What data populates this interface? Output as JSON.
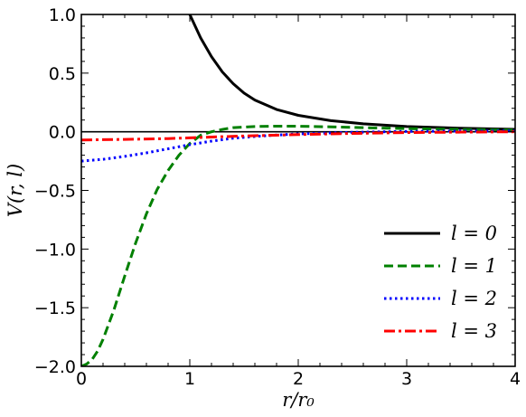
{
  "chart_data": {
    "type": "line",
    "xlabel": "r/r₀",
    "ylabel": "V(r, l)",
    "xlim": [
      0,
      4
    ],
    "ylim": [
      -2.0,
      1.0
    ],
    "x_ticks": [
      "0",
      "1",
      "2",
      "3",
      "4"
    ],
    "y_ticks": [
      "−2.0",
      "−1.5",
      "−1.0",
      "−0.5",
      "0.0",
      "0.5",
      "1.0"
    ],
    "grid": false,
    "legend_position": "lower-right",
    "series": [
      {
        "name": "l = 0",
        "color": "#000000",
        "style": "solid",
        "x": [
          1.0,
          1.05,
          1.1,
          1.2,
          1.3,
          1.4,
          1.5,
          1.6,
          1.8,
          2.0,
          2.3,
          2.6,
          3.0,
          3.5,
          4.0
        ],
        "y": [
          1.0,
          0.9,
          0.8,
          0.64,
          0.51,
          0.41,
          0.33,
          0.27,
          0.19,
          0.14,
          0.095,
          0.068,
          0.045,
          0.03,
          0.021
        ]
      },
      {
        "name": "l = 1",
        "color": "#008000",
        "style": "dashed",
        "x": [
          0.0,
          0.05,
          0.1,
          0.15,
          0.2,
          0.3,
          0.4,
          0.5,
          0.6,
          0.7,
          0.8,
          0.9,
          1.0,
          1.1,
          1.2,
          1.3,
          1.4,
          1.6,
          1.8,
          2.0,
          2.3,
          2.6,
          3.0,
          3.5,
          4.0
        ],
        "y": [
          -2.0,
          -1.98,
          -1.94,
          -1.87,
          -1.77,
          -1.52,
          -1.23,
          -0.95,
          -0.7,
          -0.49,
          -0.33,
          -0.2,
          -0.1,
          -0.03,
          0.0,
          0.02,
          0.035,
          0.045,
          0.048,
          0.047,
          0.042,
          0.035,
          0.027,
          0.02,
          0.015
        ]
      },
      {
        "name": "l = 2",
        "color": "#0000ff",
        "style": "dotted",
        "x": [
          0.0,
          0.2,
          0.4,
          0.6,
          0.8,
          1.0,
          1.2,
          1.4,
          1.6,
          1.8,
          2.0,
          2.5,
          3.0,
          3.5,
          4.0
        ],
        "y": [
          -0.25,
          -0.235,
          -0.21,
          -0.18,
          -0.145,
          -0.11,
          -0.08,
          -0.055,
          -0.04,
          -0.028,
          -0.018,
          -0.005,
          0.003,
          0.006,
          0.007
        ]
      },
      {
        "name": "l = 3",
        "color": "#ff0000",
        "style": "dashdot",
        "x": [
          0.0,
          0.4,
          0.8,
          1.0,
          1.2,
          1.5,
          2.0,
          2.5,
          3.0,
          3.5,
          4.0
        ],
        "y": [
          -0.07,
          -0.065,
          -0.058,
          -0.052,
          -0.045,
          -0.036,
          -0.024,
          -0.014,
          -0.007,
          -0.003,
          0.0
        ]
      }
    ]
  }
}
